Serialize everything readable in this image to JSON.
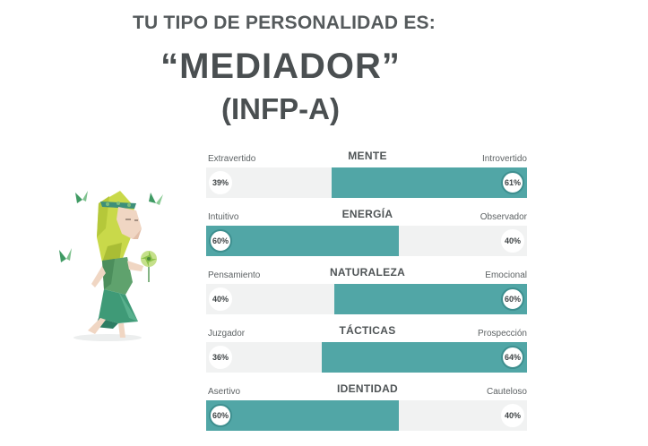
{
  "header": {
    "heading": "TU TIPO DE PERSONALIDAD ES:",
    "type_name": "“MEDIADOR”",
    "type_code": "(INFP-A)"
  },
  "colors": {
    "accent": "#51a6a6",
    "track": "#f1f2f2",
    "text": "#4a4f51"
  },
  "illustration": {
    "icon": "mediator-character-illustration"
  },
  "traits": [
    {
      "title": "MENTE",
      "left_label": "Extravertido",
      "right_label": "Introvertido",
      "left_value": "39%",
      "right_value": "61%",
      "dominant": "right",
      "dominant_fraction": 0.61
    },
    {
      "title": "ENERGÍA",
      "left_label": "Intuitivo",
      "right_label": "Observador",
      "left_value": "60%",
      "right_value": "40%",
      "dominant": "left",
      "dominant_fraction": 0.6
    },
    {
      "title": "NATURALEZA",
      "left_label": "Pensamiento",
      "right_label": "Emocional",
      "left_value": "40%",
      "right_value": "60%",
      "dominant": "right",
      "dominant_fraction": 0.6
    },
    {
      "title": "TÁCTICAS",
      "left_label": "Juzgador",
      "right_label": "Prospección",
      "left_value": "36%",
      "right_value": "64%",
      "dominant": "right",
      "dominant_fraction": 0.64
    },
    {
      "title": "IDENTIDAD",
      "left_label": "Asertivo",
      "right_label": "Cauteloso",
      "left_value": "60%",
      "right_value": "40%",
      "dominant": "left",
      "dominant_fraction": 0.6
    }
  ]
}
